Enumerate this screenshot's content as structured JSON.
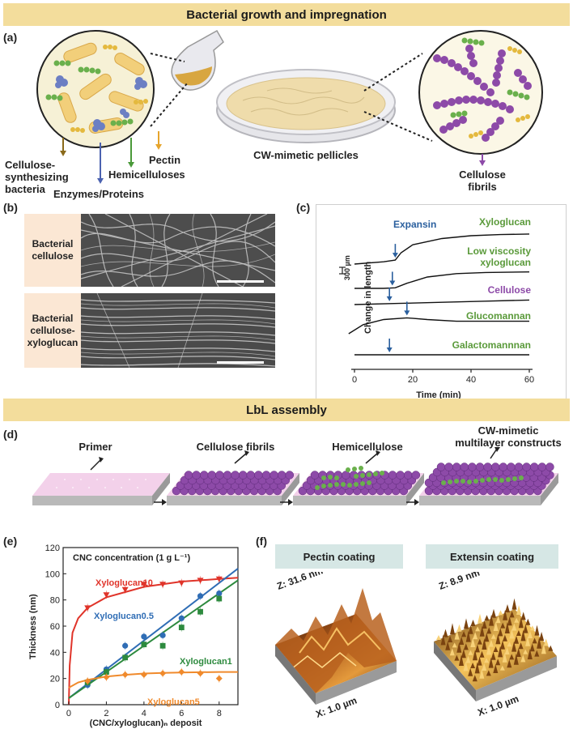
{
  "banners": {
    "top": "Bacterial growth and impregnation",
    "middle": "LbL assembly"
  },
  "panel_labels": {
    "a": "(a)",
    "b": "(b)",
    "c": "(c)",
    "d": "(d)",
    "e": "(e)",
    "f": "(f)"
  },
  "panel_a": {
    "cellulose_synthesizing": "Cellulose-\nsynthesizing\nbacteria",
    "enzymes": "Enzymes/Proteins",
    "hemicelluloses": "Hemicelluloses",
    "pectin": "Pectin",
    "pellicles": "CW-mimetic pellicles",
    "cellulose_fibrils": "Cellulose\nfibrils",
    "colors": {
      "bacteria": "#f2cf7a",
      "enzyme": "#6c7fc3",
      "green": "#6ab04c",
      "pectin": "#e4b93e",
      "cellulose": "#8d4aa8"
    }
  },
  "panel_b": {
    "label_top": "Bacterial\ncellulose",
    "label_bottom": "Bacterial\ncellulose-\nxyloglucan"
  },
  "panel_c": {
    "chart_data": {
      "type": "line",
      "xlabel": "Time (min)",
      "ylabel": "Change in length",
      "scale_bar": "300 µm",
      "x_ticks": [
        "0",
        "20",
        "40",
        "60"
      ],
      "xlim": [
        0,
        60
      ],
      "annotation": "Expansin",
      "series": [
        {
          "name": "Xyloglucan",
          "color": "#5a9a3a",
          "x": [
            0,
            10,
            14,
            16,
            20,
            30,
            40,
            50,
            60
          ],
          "y": [
            0,
            0.4,
            0.7,
            2.0,
            3.4,
            4.5,
            5.0,
            5.2,
            5.3
          ],
          "addition_time": 14
        },
        {
          "name": "Low viscosity xyloglucan",
          "color": "#5a9a3a",
          "x": [
            0,
            10,
            14,
            18,
            25,
            35,
            45,
            60
          ],
          "y": [
            0,
            0,
            0.1,
            0.9,
            2.0,
            2.6,
            2.8,
            2.9
          ],
          "addition_time": 13
        },
        {
          "name": "Cellulose",
          "color": "#8d4aa8",
          "x": [
            0,
            15,
            30,
            45,
            60
          ],
          "y": [
            0,
            0.2,
            0.4,
            0.6,
            0.8
          ],
          "addition_time": 12
        },
        {
          "name": "Glucomannan",
          "color": "#5a9a3a",
          "x": [
            -2,
            3,
            10,
            18,
            25,
            35,
            45,
            60
          ],
          "y": [
            0,
            1.6,
            2.5,
            2.8,
            2.5,
            2.2,
            2.2,
            2.2
          ],
          "addition_time": 18
        },
        {
          "name": "Galactomannnan",
          "color": "#5a9a3a",
          "x": [
            0,
            30,
            60
          ],
          "y": [
            0,
            0,
            0
          ],
          "addition_time": 12
        }
      ]
    }
  },
  "panel_d": {
    "steps": [
      "Primer",
      "Cellulose fibrils",
      "Hemicellulose",
      "CW-mimetic\nmultilayer constructs"
    ]
  },
  "panel_e": {
    "chart_data": {
      "type": "scatter",
      "title": "CNC concentration (1 g L⁻¹)",
      "xlabel": "(CNC/xyloglucan)ₙ deposit",
      "ylabel": "Thickness (nm)",
      "xlim": [
        -0.3,
        9
      ],
      "ylim": [
        0,
        120
      ],
      "x_ticks": [
        0,
        2,
        4,
        6,
        8
      ],
      "y_ticks": [
        0,
        20,
        40,
        60,
        80,
        100,
        120
      ],
      "series": [
        {
          "name": "Xyloglucan10",
          "color": "#e0342a",
          "marker": "triangle-down",
          "x": [
            1,
            2,
            3,
            4,
            5,
            6,
            7,
            8
          ],
          "y": [
            74,
            84,
            88,
            92,
            92,
            93,
            95,
            96
          ],
          "fit_x": [
            0,
            0.05,
            0.2,
            0.5,
            1,
            2,
            3,
            4,
            5,
            6,
            7,
            8,
            9
          ],
          "fit_y": [
            0,
            30,
            55,
            66,
            74,
            82,
            86,
            90,
            92,
            94,
            95,
            96,
            97
          ]
        },
        {
          "name": "Xyloglucan0.5",
          "color": "#2f6db5",
          "marker": "circle",
          "x": [
            1,
            2,
            3,
            4,
            5,
            6,
            7,
            8
          ],
          "y": [
            15,
            27,
            45,
            52,
            53,
            66,
            83,
            85
          ],
          "fit_x": [
            0,
            9
          ],
          "fit_y": [
            5,
            104
          ]
        },
        {
          "name": "Xyloglucan1",
          "color": "#2d8a3e",
          "marker": "square",
          "x": [
            1,
            2,
            3,
            4,
            5,
            6,
            7,
            8
          ],
          "y": [
            17,
            25,
            36,
            46,
            45,
            59,
            71,
            81
          ],
          "fit_x": [
            0,
            9
          ],
          "fit_y": [
            5,
            95
          ]
        },
        {
          "name": "Xyloglucan5",
          "color": "#f08a2c",
          "marker": "diamond",
          "x": [
            1,
            2,
            3,
            4,
            5,
            6,
            7,
            8
          ],
          "y": [
            18,
            21,
            23,
            23,
            24,
            25,
            24,
            20
          ],
          "fit_x": [
            0,
            0.5,
            1,
            2,
            3,
            4,
            5,
            6,
            7,
            8,
            9
          ],
          "fit_y": [
            13,
            17,
            19,
            21.5,
            22.8,
            23.8,
            24.3,
            24.6,
            24.8,
            25,
            25
          ]
        }
      ]
    }
  },
  "panel_f": {
    "left_title": "Pectin coating",
    "left_z": "Z: 31.6 nm",
    "left_x": "X: 1.0 µm",
    "right_title": "Extensin coating",
    "right_z": "Z: 8.9 nm",
    "right_x": "X: 1.0 µm"
  }
}
